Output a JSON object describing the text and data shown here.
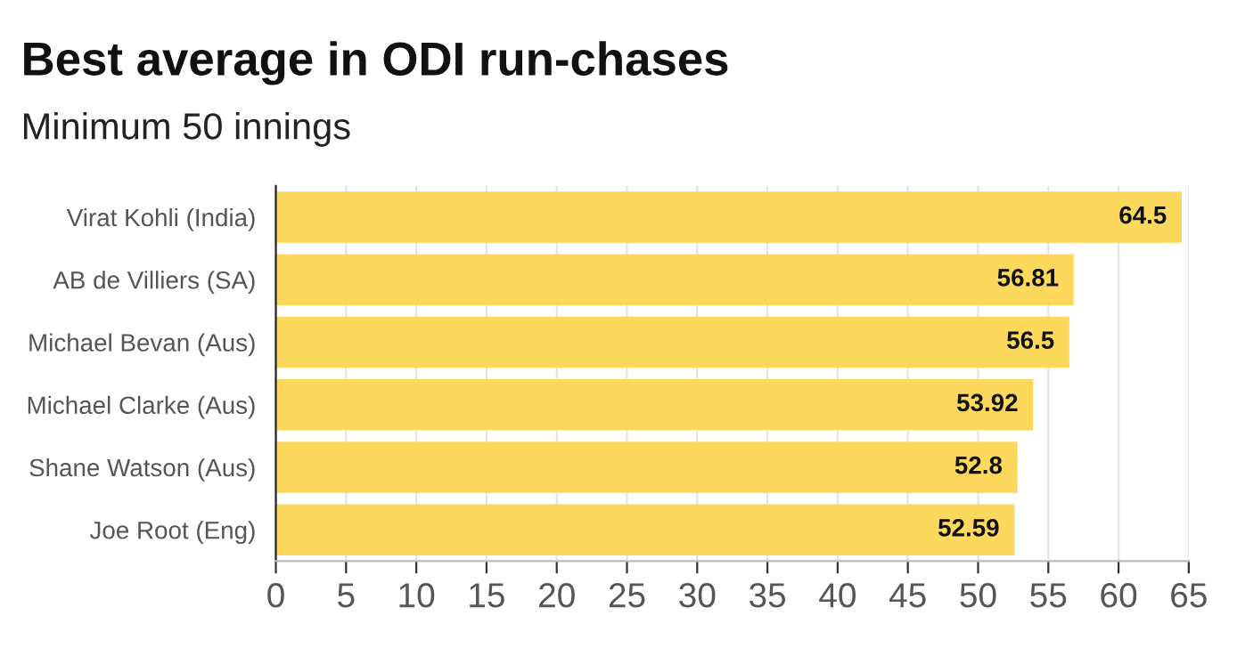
{
  "chart_data": {
    "type": "bar",
    "orientation": "horizontal",
    "title": "Best average in ODI run-chases",
    "subtitle": "Minimum 50 innings",
    "categories": [
      "Virat Kohli (India)",
      "AB de Villiers (SA)",
      "Michael Bevan (Aus)",
      "Michael Clarke (Aus)",
      "Shane Watson (Aus)",
      "Joe Root (Eng)"
    ],
    "values": [
      64.5,
      56.81,
      56.5,
      53.92,
      52.8,
      52.59
    ],
    "color": "#fcd95c",
    "xlim": [
      0,
      65
    ],
    "xticks": [
      0,
      5,
      10,
      15,
      20,
      25,
      30,
      35,
      40,
      45,
      50,
      55,
      60,
      65
    ],
    "grid": "x",
    "data_labels": true
  }
}
